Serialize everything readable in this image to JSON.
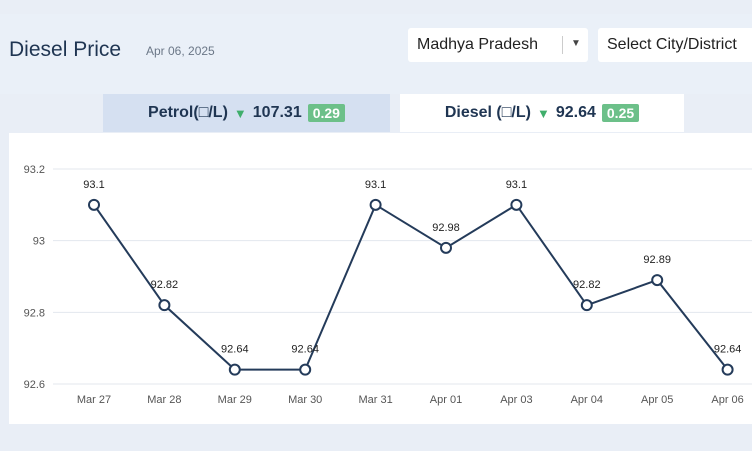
{
  "header": {
    "title": "Diesel Price",
    "date": "Apr 06, 2025",
    "state_select": "Madhya Pradesh",
    "city_select": "Select City/District"
  },
  "tabs": {
    "petrol": {
      "label": "Petrol(□/L)",
      "price": "107.31",
      "change": "0.29",
      "direction": "down"
    },
    "diesel": {
      "label": "Diesel (□/L)",
      "price": "92.64",
      "change": "0.25",
      "direction": "down"
    }
  },
  "colors": {
    "line": "#243b5a",
    "badge": "#6cc089",
    "arrow": "#3fae6b",
    "active_tab": "#ffffff",
    "inactive_tab": "#d5e0f1"
  },
  "chart_data": {
    "type": "line",
    "categories": [
      "Mar 27",
      "Mar 28",
      "Mar 29",
      "Mar 30",
      "Mar 31",
      "Apr 01",
      "Apr 03",
      "Apr 04",
      "Apr 05",
      "Apr 06"
    ],
    "values": [
      93.1,
      92.82,
      92.64,
      92.64,
      93.1,
      92.98,
      93.1,
      92.82,
      92.89,
      92.64
    ],
    "data_labels": [
      "93.1",
      "92.82",
      "92.64",
      "92.64",
      "93.1",
      "92.98",
      "93.1",
      "92.82",
      "92.89",
      "92.64"
    ],
    "yticks": [
      "93.2",
      "93",
      "92.8",
      "92.6"
    ],
    "ylim": [
      92.6,
      93.2
    ],
    "grid": true,
    "title": "",
    "xlabel": "",
    "ylabel": ""
  }
}
